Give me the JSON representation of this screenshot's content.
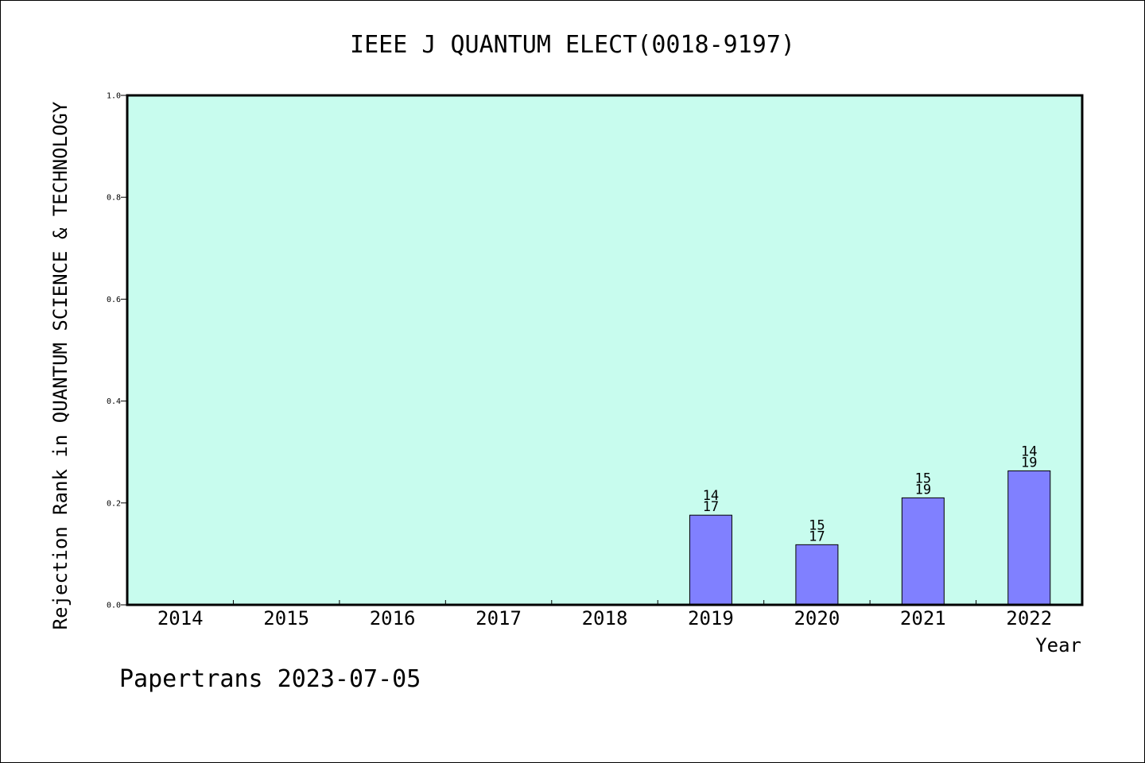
{
  "chart_data": {
    "type": "bar",
    "title": "IEEE J QUANTUM ELECT(0018-9197)",
    "xlabel": "Year",
    "ylabel": "Rejection Rank in QUANTUM SCIENCE & TECHNOLOGY",
    "ylim": [
      0,
      1.0
    ],
    "yticks": [
      "0.0",
      "0.2",
      "0.4",
      "0.6",
      "0.8",
      "1.0"
    ],
    "categories": [
      "2014",
      "2015",
      "2016",
      "2017",
      "2018",
      "2019",
      "2020",
      "2021",
      "2022"
    ],
    "values": [
      null,
      null,
      null,
      null,
      null,
      0.176,
      0.118,
      0.21,
      0.263
    ],
    "bar_labels": [
      null,
      null,
      null,
      null,
      null,
      {
        "rank": "14",
        "total": "17"
      },
      {
        "rank": "15",
        "total": "17"
      },
      {
        "rank": "15",
        "total": "19"
      },
      {
        "rank": "14",
        "total": "19"
      }
    ],
    "plot_background": "#c8fcee",
    "bar_color": "#8080ff",
    "grid": false
  },
  "footer": "Papertrans 2023-07-05"
}
